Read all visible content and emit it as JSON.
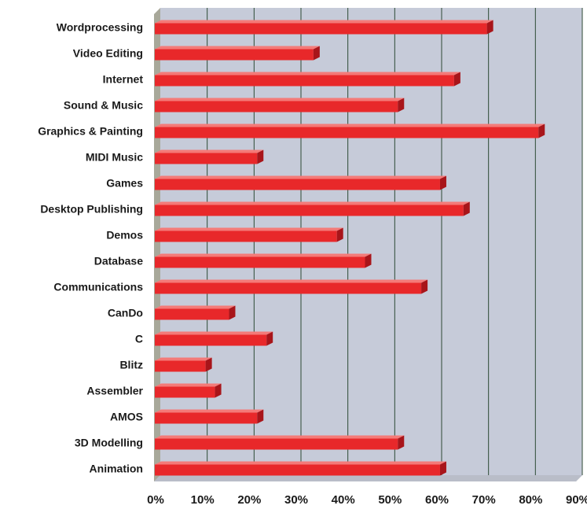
{
  "chart_data": {
    "type": "bar",
    "orientation": "horizontal",
    "title": "",
    "xlabel": "",
    "ylabel": "",
    "categories": [
      "Wordprocessing",
      "Video Editing",
      "Internet",
      "Sound & Music",
      "Graphics & Painting",
      "MIDI Music",
      "Games",
      "Desktop Publishing",
      "Demos",
      "Database",
      "Communications",
      "CanDo",
      "C",
      "Blitz",
      "Assembler",
      "AMOS",
      "3D Modelling",
      "Animation"
    ],
    "values": [
      71,
      34,
      64,
      52,
      82,
      22,
      61,
      66,
      39,
      45,
      57,
      16,
      24,
      11,
      13,
      22,
      52,
      61
    ],
    "xlim": [
      0,
      90
    ],
    "xticks": [
      0,
      10,
      20,
      30,
      40,
      50,
      60,
      70,
      80,
      90
    ],
    "xtick_labels": [
      "0%",
      "10%",
      "20%",
      "30%",
      "40%",
      "50%",
      "60%",
      "70%",
      "80%",
      "90%"
    ],
    "grid": true,
    "legend": "none",
    "colors": {
      "bar_front": "#e8282a",
      "bar_top": "#f47a78",
      "bar_end": "#a8151a",
      "plot_background": "#c6cbd9",
      "wall_side": "#a8a89a",
      "gridline": "#2d4a35",
      "floor": "#b9bdc8"
    }
  }
}
